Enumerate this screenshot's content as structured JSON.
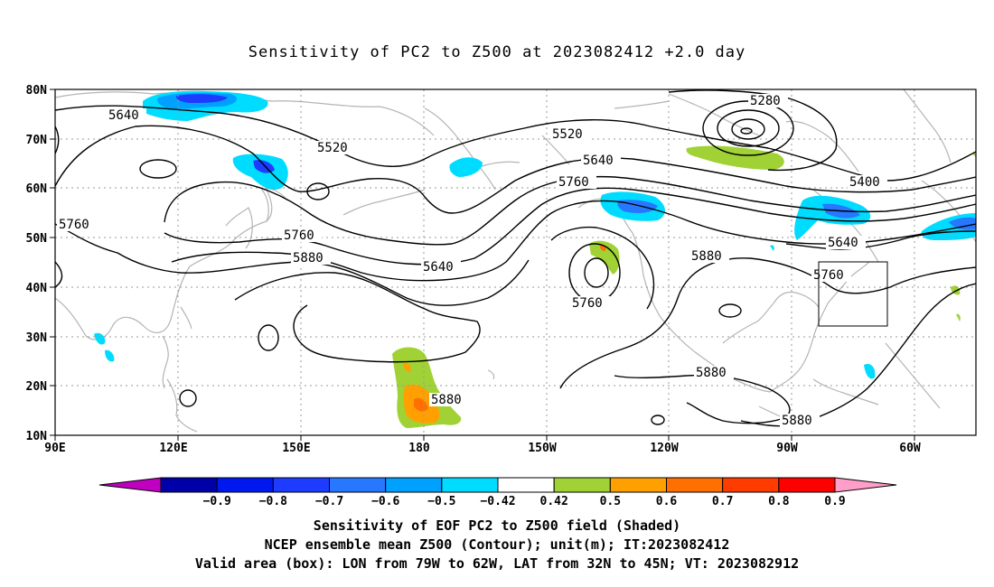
{
  "title": "Sensitivity of PC2 to Z500 at 2023082412 +2.0 day",
  "map": {
    "lat_labels": [
      "80N",
      "70N",
      "60N",
      "50N",
      "40N",
      "30N",
      "20N",
      "10N"
    ],
    "lon_labels": [
      "90E",
      "120E",
      "150E",
      "180",
      "150W",
      "120W",
      "90W",
      "60W"
    ],
    "contour_labels": [
      "5280",
      "5640",
      "5520",
      "5520",
      "5400",
      "5640",
      "5760",
      "5760",
      "5760",
      "5640",
      "5640",
      "5760",
      "5880",
      "5880",
      "5760",
      "5880",
      "5880",
      "5880"
    ],
    "valid_box": {
      "lon_range": [
        "79W",
        "62W"
      ],
      "lat_range": [
        "32N",
        "45N"
      ]
    }
  },
  "colorbar": {
    "ticks": [
      "-0.9",
      "-0.8",
      "-0.7",
      "-0.6",
      "-0.5",
      "-0.42",
      "0.42",
      "0.5",
      "0.6",
      "0.7",
      "0.8",
      "0.9"
    ],
    "colors": [
      "#c000c0",
      "#0000a8",
      "#0018f0",
      "#1e3cff",
      "#2878ff",
      "#00a0ff",
      "#00dcff",
      "#ffffff",
      "#a0d236",
      "#ffa000",
      "#ff7000",
      "#ff3c00",
      "#ff0000",
      "#ff9ec8"
    ]
  },
  "captions": {
    "line1": "Sensitivity of EOF PC2 to Z500 field (Shaded)",
    "line2": "NCEP ensemble mean Z500 (Contour); unit(m); IT:2023082412",
    "line3": "Valid area (box): LON from 79W to 62W, LAT from 32N to 45N; VT: 2023082912"
  }
}
